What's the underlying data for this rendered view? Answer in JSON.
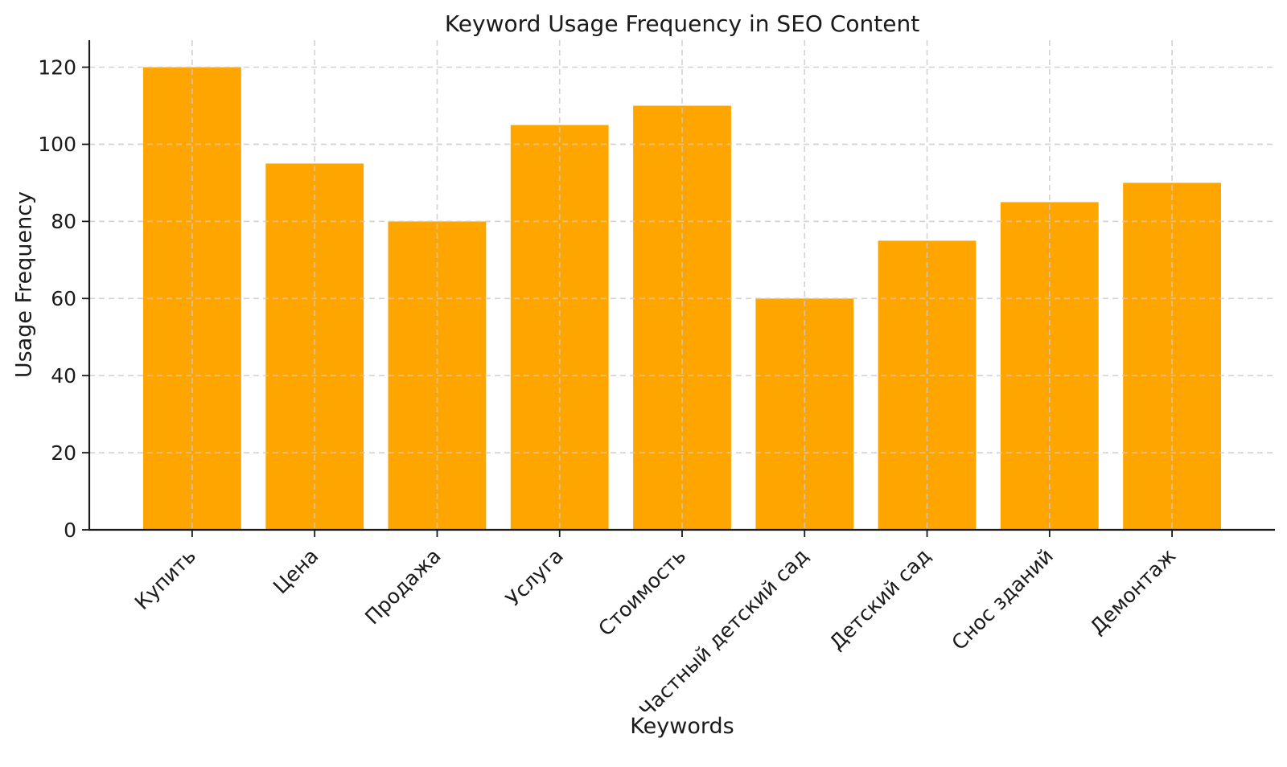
{
  "chart_data": {
    "type": "bar",
    "title": "Keyword Usage Frequency in SEO Content",
    "xlabel": "Keywords",
    "ylabel": "Usage Frequency",
    "categories": [
      "Купить",
      "Цена",
      "Продажа",
      "Услуга",
      "Стоимость",
      "Частный детский сад",
      "Детский сад",
      "Снос зданий",
      "Демонтаж"
    ],
    "values": [
      120,
      95,
      80,
      105,
      110,
      60,
      75,
      85,
      90
    ],
    "yticks": [
      0,
      20,
      40,
      60,
      80,
      100,
      120
    ],
    "ylim": [
      0,
      127
    ],
    "bar_color": "#FFA500",
    "grid": {
      "visible": true,
      "style": "dashed",
      "color": "#c9c9c9",
      "on_top_of_bars": true
    },
    "axis_color": "#1a1a1a",
    "tick_label_rotation": 45,
    "legend": null,
    "spines": {
      "top": false,
      "right": false,
      "left": true,
      "bottom": true
    }
  }
}
